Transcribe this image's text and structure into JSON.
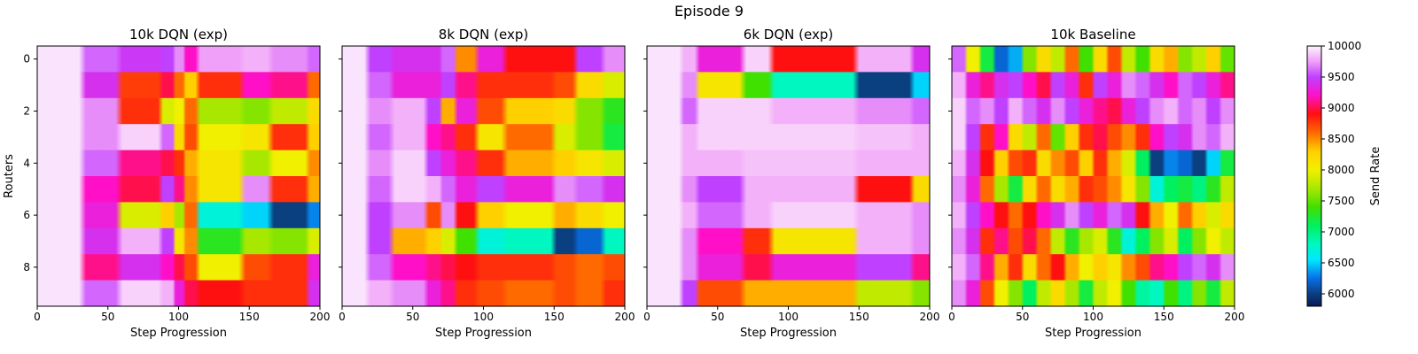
{
  "figure": {
    "suptitle": "Episode 9"
  },
  "chart_data": [
    {
      "type": "heatmap",
      "title": "10k DQN (exp)",
      "xlabel": "Step Progression",
      "ylabel": "Routers",
      "xlim": [
        0,
        200
      ],
      "ylim": [
        9.5,
        -0.5
      ],
      "xticks": [
        "0",
        "50",
        "100",
        "150",
        "200"
      ],
      "yticks": [
        "0",
        "2",
        "4",
        "6",
        "8"
      ],
      "rows": 10,
      "time_breaks": [
        0,
        32,
        58,
        88,
        97,
        104,
        113,
        145,
        165,
        192,
        200
      ],
      "values": [
        [
          9950,
          9600,
          9450,
          9500,
          9700,
          9200,
          9750,
          9800,
          9700,
          9600
        ],
        [
          9950,
          9400,
          8750,
          9000,
          8600,
          8300,
          8800,
          9200,
          9100,
          8600
        ],
        [
          9950,
          9700,
          8800,
          7900,
          8000,
          8600,
          7700,
          7600,
          7800,
          8200
        ],
        [
          9950,
          9700,
          9900,
          9600,
          8200,
          8700,
          8000,
          8100,
          8800,
          8300
        ],
        [
          9950,
          9600,
          9100,
          9000,
          8800,
          8400,
          8100,
          7700,
          8000,
          8500
        ],
        [
          9950,
          9200,
          9000,
          9500,
          9100,
          8500,
          8100,
          9700,
          8800,
          8400
        ],
        [
          9950,
          9300,
          7900,
          8300,
          7700,
          8600,
          6700,
          6500,
          6000,
          6300
        ],
        [
          9950,
          9400,
          9800,
          9500,
          8100,
          8500,
          7300,
          7700,
          7600,
          7900
        ],
        [
          9950,
          9100,
          9400,
          9200,
          9000,
          8700,
          8000,
          8700,
          8800,
          9300
        ],
        [
          9950,
          9600,
          9900,
          9800,
          9300,
          9000,
          8900,
          8800,
          8800,
          9400
        ]
      ]
    },
    {
      "type": "heatmap",
      "title": "8k DQN (exp)",
      "xlabel": "Step Progression",
      "xlim": [
        0,
        200
      ],
      "ylim": [
        9.5,
        -0.5
      ],
      "xticks": [
        "0",
        "50",
        "100",
        "150",
        "200"
      ],
      "rows": 10,
      "time_breaks": [
        0,
        18,
        35,
        60,
        70,
        80,
        95,
        115,
        150,
        165,
        185,
        200
      ],
      "values": [
        [
          9950,
          9500,
          9400,
          9400,
          9600,
          8500,
          9300,
          8900,
          8900,
          9500,
          9700
        ],
        [
          9950,
          9600,
          9300,
          9300,
          9500,
          9100,
          8800,
          8800,
          8700,
          8200,
          7900
        ],
        [
          9950,
          9700,
          9800,
          9500,
          8400,
          9300,
          8700,
          8300,
          8200,
          7600,
          7300
        ],
        [
          9950,
          9600,
          9800,
          9200,
          9100,
          8800,
          8100,
          8600,
          7900,
          7600,
          7200
        ],
        [
          9950,
          9700,
          9900,
          9500,
          9300,
          9100,
          8800,
          8400,
          8300,
          8100,
          7900
        ],
        [
          9950,
          9600,
          9900,
          9800,
          9600,
          9300,
          9500,
          9300,
          9700,
          9600,
          9400
        ],
        [
          9950,
          9500,
          9700,
          8700,
          9700,
          8900,
          8300,
          8000,
          8400,
          8200,
          8000
        ],
        [
          9950,
          9500,
          8400,
          8300,
          7900,
          7400,
          6700,
          6800,
          6000,
          6200,
          6800
        ],
        [
          9950,
          9600,
          9200,
          9100,
          9000,
          8900,
          8800,
          8800,
          8700,
          8600,
          8700
        ],
        [
          9950,
          9800,
          9700,
          9300,
          9100,
          8800,
          8700,
          8600,
          8700,
          8600,
          8800
        ]
      ]
    },
    {
      "type": "heatmap",
      "title": "6k DQN (exp)",
      "xlabel": "Step Progression",
      "xlim": [
        0,
        200
      ],
      "ylim": [
        9.5,
        -0.5
      ],
      "xticks": [
        "0",
        "50",
        "100",
        "150",
        "200"
      ],
      "rows": 10,
      "time_breaks": [
        0,
        25,
        35,
        68,
        88,
        148,
        188,
        200
      ],
      "values": [
        [
          9950,
          9800,
          9300,
          9900,
          8900,
          9800,
          9400
        ],
        [
          9950,
          9700,
          8100,
          7400,
          6800,
          6000,
          6500
        ],
        [
          9950,
          9600,
          9900,
          9900,
          9800,
          9700,
          9600
        ],
        [
          9950,
          9800,
          9900,
          9900,
          9900,
          9850,
          9800
        ],
        [
          9950,
          9800,
          9800,
          9850,
          9850,
          9800,
          9800
        ],
        [
          9950,
          9700,
          9500,
          9800,
          9800,
          8900,
          8200
        ],
        [
          9950,
          9800,
          9600,
          9800,
          9900,
          9800,
          9700
        ],
        [
          9950,
          9700,
          9200,
          8800,
          8100,
          9800,
          9700
        ],
        [
          9950,
          9700,
          9300,
          9000,
          9300,
          9500,
          9100
        ],
        [
          9950,
          9500,
          8700,
          8400,
          8400,
          7800,
          7600
        ]
      ]
    },
    {
      "type": "heatmap",
      "title": "10k Baseline",
      "xlabel": "Step Progression",
      "xlim": [
        0,
        200
      ],
      "ylim": [
        9.5,
        -0.5
      ],
      "xticks": [
        "0",
        "50",
        "100",
        "150",
        "200"
      ],
      "rows": 10,
      "time_breaks": [
        0,
        10,
        20,
        30,
        40,
        50,
        60,
        70,
        80,
        90,
        100,
        110,
        120,
        130,
        140,
        150,
        160,
        170,
        180,
        190,
        200
      ],
      "values": [
        [
          9600,
          8000,
          7200,
          6200,
          6400,
          7600,
          8200,
          7800,
          8600,
          7400,
          8200,
          8700,
          7800,
          7400,
          8200,
          8400,
          7600,
          7800,
          8300,
          7500
        ],
        [
          9800,
          9300,
          9100,
          9400,
          9500,
          9200,
          9000,
          9500,
          9300,
          8800,
          9500,
          9300,
          9700,
          9600,
          9400,
          9200,
          9600,
          9500,
          9300,
          9100
        ],
        [
          9900,
          9600,
          9700,
          9500,
          9800,
          9600,
          9400,
          9700,
          9500,
          9300,
          9100,
          9000,
          9300,
          9500,
          9700,
          9800,
          9600,
          9700,
          9500,
          9700
        ],
        [
          9900,
          9500,
          8800,
          9200,
          8200,
          7800,
          8600,
          7500,
          8300,
          8800,
          9000,
          8700,
          8500,
          8800,
          9200,
          9500,
          9400,
          9700,
          9600,
          9800
        ],
        [
          9800,
          9400,
          8900,
          8300,
          8700,
          8800,
          8200,
          8500,
          8700,
          8300,
          8800,
          8400,
          7900,
          7100,
          6000,
          6300,
          6200,
          6000,
          6500,
          7200
        ],
        [
          9700,
          9300,
          8600,
          7700,
          7200,
          8200,
          8600,
          8200,
          8400,
          8800,
          8700,
          8500,
          8100,
          7600,
          6700,
          7100,
          7200,
          7000,
          7300,
          7800
        ],
        [
          9800,
          9500,
          9200,
          8900,
          8600,
          8900,
          9200,
          9400,
          9700,
          9500,
          9300,
          9600,
          9400,
          8900,
          8400,
          8000,
          8600,
          8300,
          7900,
          8200
        ],
        [
          9700,
          9400,
          8800,
          9100,
          8700,
          9000,
          8600,
          7800,
          7300,
          7700,
          7900,
          7300,
          6700,
          7100,
          7600,
          7900,
          7100,
          7600,
          8000,
          7800
        ],
        [
          9800,
          9600,
          9100,
          8400,
          8800,
          8200,
          8600,
          8900,
          8400,
          8000,
          8300,
          8100,
          8500,
          8700,
          9100,
          9200,
          9500,
          9600,
          9400,
          9700
        ],
        [
          9700,
          9300,
          8700,
          8000,
          7600,
          7100,
          7800,
          8200,
          7700,
          7200,
          7800,
          8000,
          7400,
          6900,
          6800,
          7400,
          7000,
          7600,
          7200,
          7800
        ]
      ]
    }
  ],
  "colorbar": {
    "label": "Send Rate",
    "min": 5800,
    "max": 10000,
    "ticks": [
      "6000",
      "6500",
      "7000",
      "7500",
      "8000",
      "8500",
      "9000",
      "9500",
      "10000"
    ],
    "colormap": "gist_ncar",
    "stops": [
      {
        "v": 5800,
        "c": "#0a1855"
      },
      {
        "v": 6000,
        "c": "#0a3f80"
      },
      {
        "v": 6250,
        "c": "#0870e8"
      },
      {
        "v": 6550,
        "c": "#00e8ff"
      },
      {
        "v": 6800,
        "c": "#00f8c0"
      },
      {
        "v": 7100,
        "c": "#00f060"
      },
      {
        "v": 7400,
        "c": "#40e000"
      },
      {
        "v": 7700,
        "c": "#a8e800"
      },
      {
        "v": 8000,
        "c": "#f0f000"
      },
      {
        "v": 8300,
        "c": "#ffd000"
      },
      {
        "v": 8600,
        "c": "#ff6a00"
      },
      {
        "v": 8900,
        "c": "#ff1010"
      },
      {
        "v": 9200,
        "c": "#ff10c8"
      },
      {
        "v": 9500,
        "c": "#c040ff"
      },
      {
        "v": 9750,
        "c": "#f0a0f8"
      },
      {
        "v": 10000,
        "c": "#fdf4fd"
      }
    ]
  }
}
